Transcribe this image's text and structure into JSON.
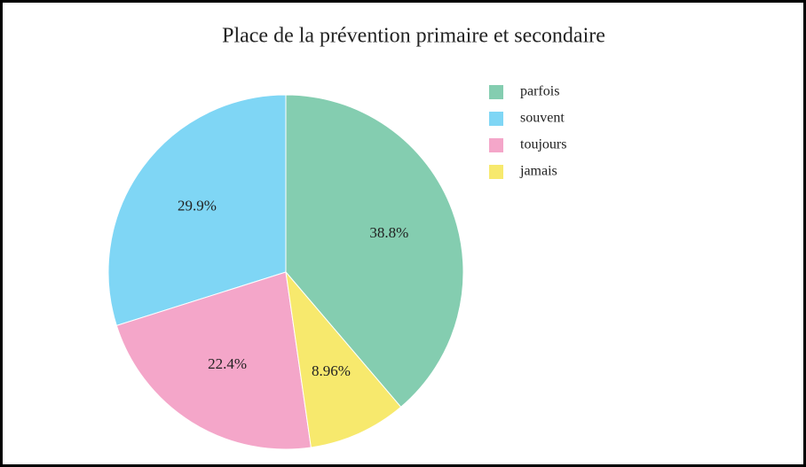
{
  "chart_data": {
    "type": "pie",
    "title": "Place de la prévention primaire et secondaire",
    "categories": [
      "parfois",
      "souvent",
      "toujours",
      "jamais"
    ],
    "values": [
      38.8,
      29.9,
      22.4,
      8.96
    ],
    "value_labels": [
      "38.8%",
      "29.9%",
      "22.4%",
      "8.96%"
    ],
    "colors": [
      "#84cdb0",
      "#7fd6f5",
      "#f4a6c9",
      "#f7e96d"
    ],
    "direction": "counterclockwise",
    "legend": "top-right"
  }
}
